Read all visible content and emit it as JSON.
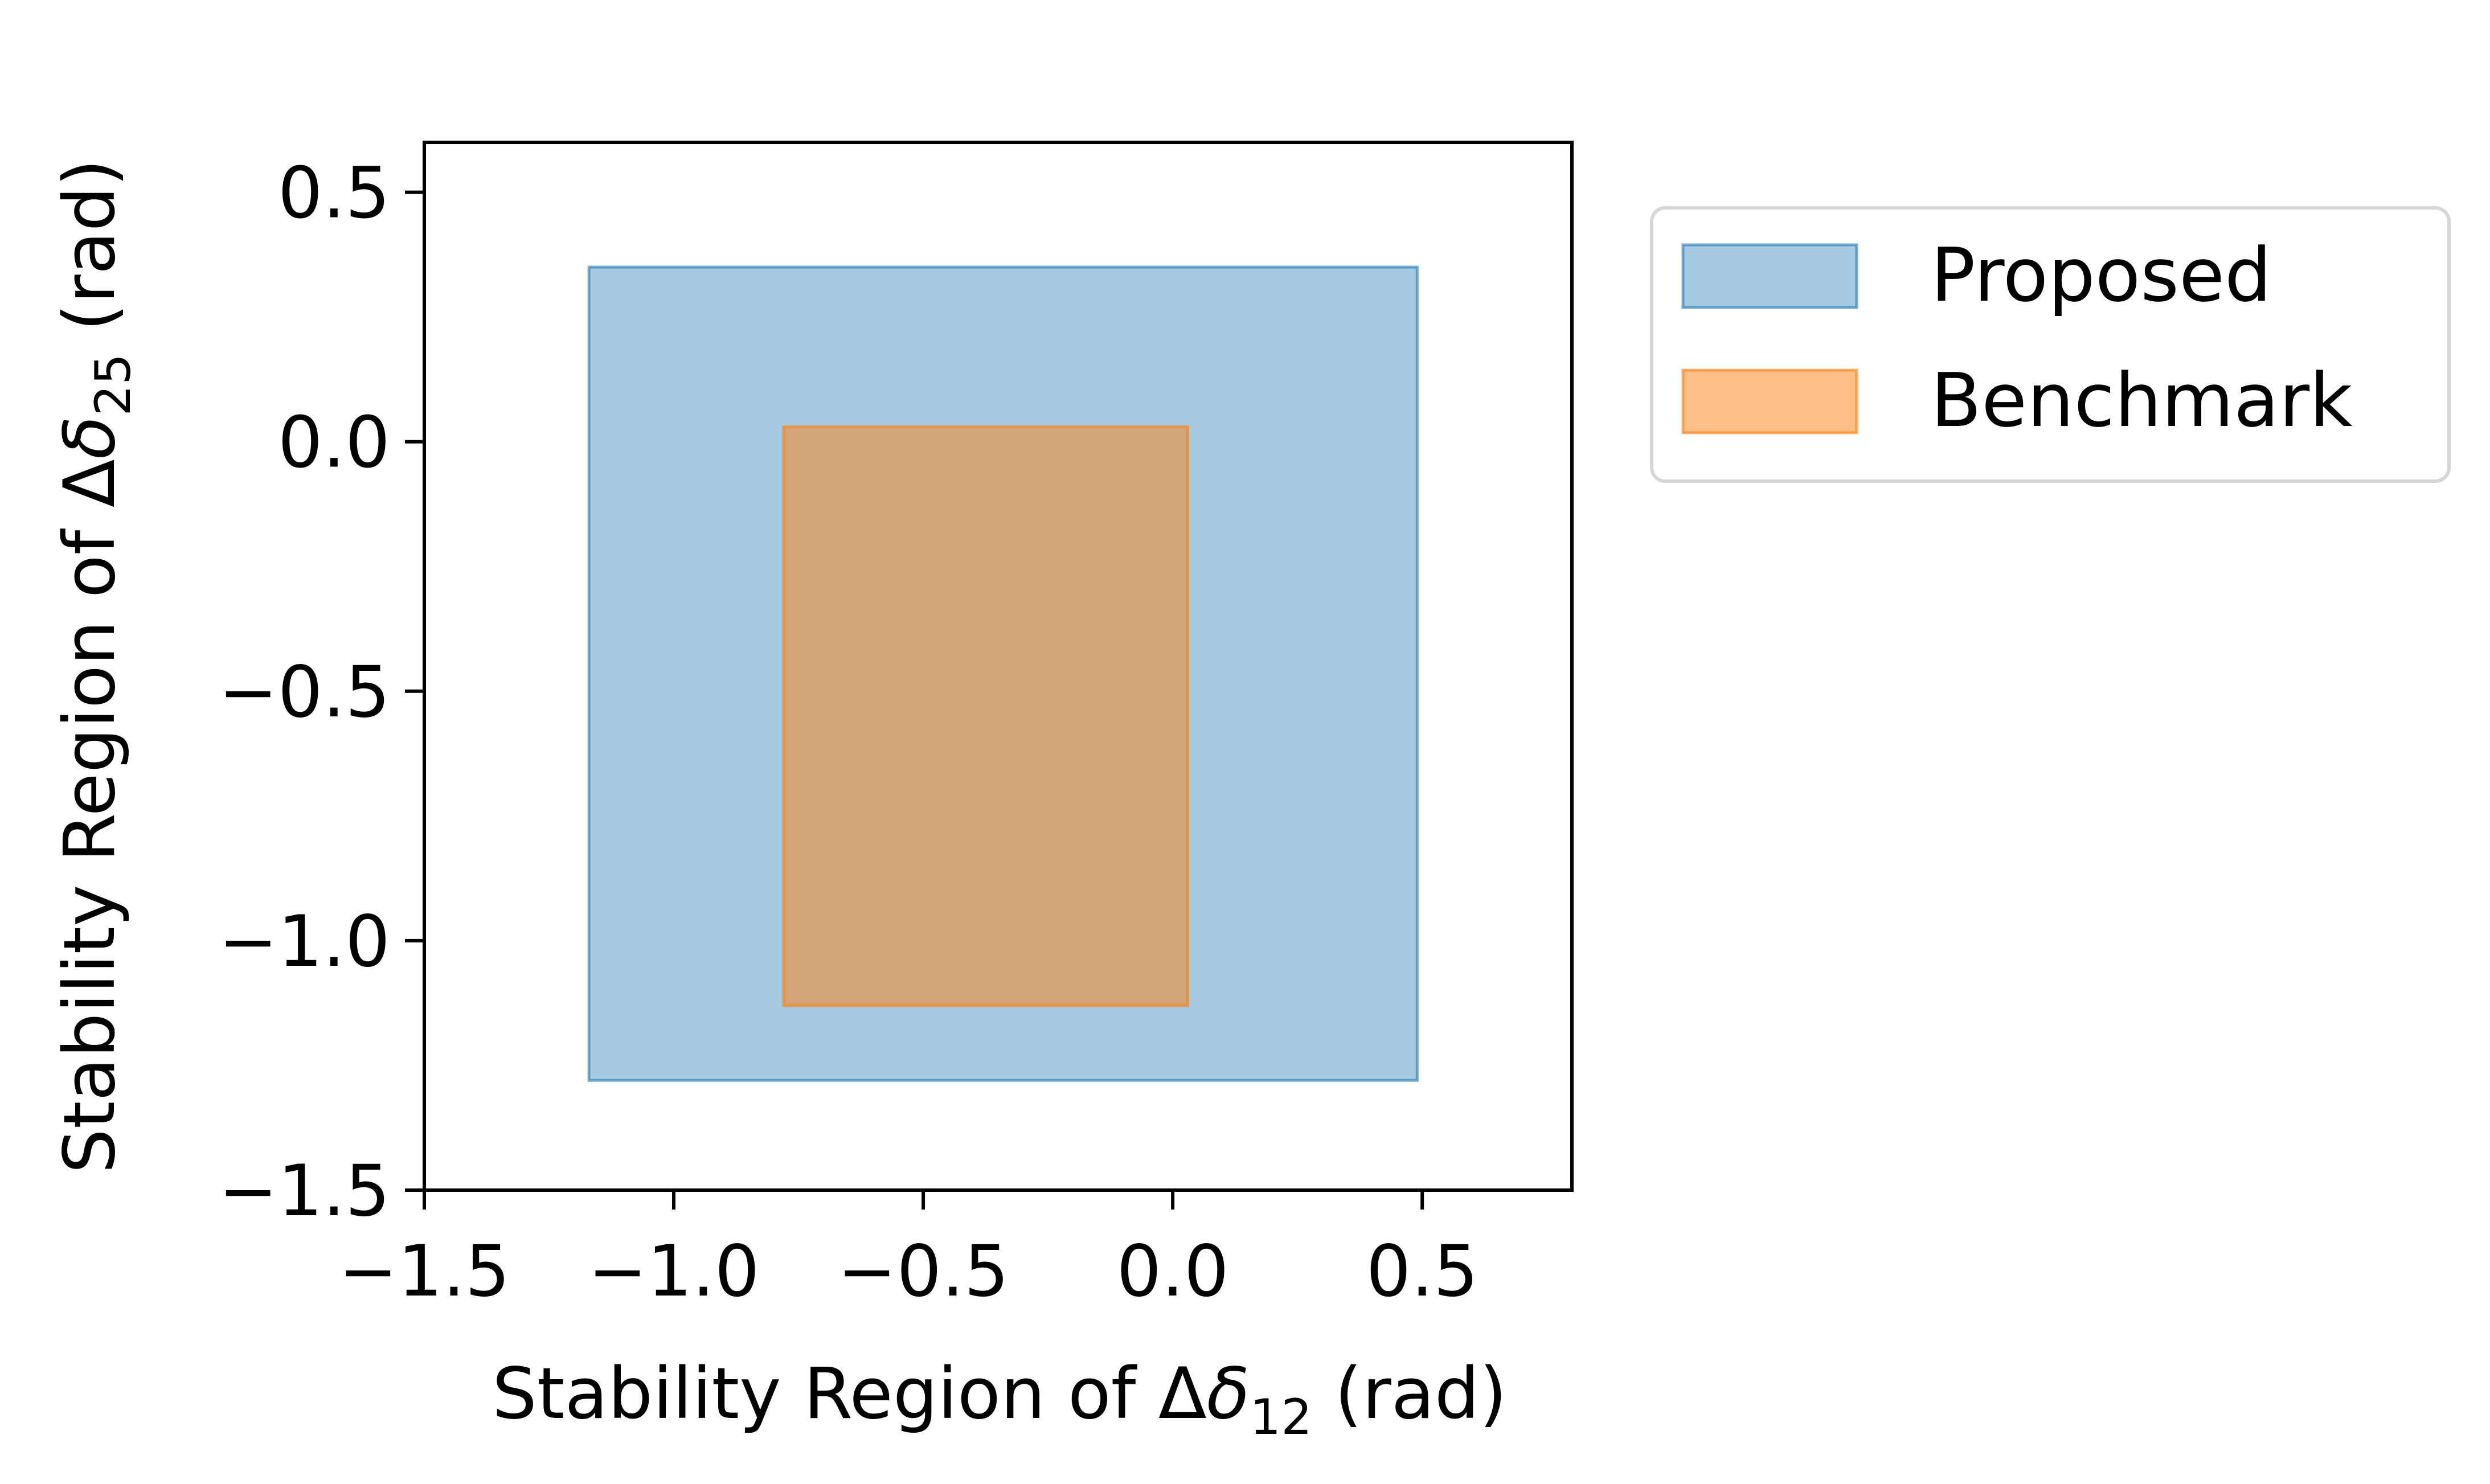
{
  "chart_data": {
    "type": "area",
    "title": "",
    "xlabel": {
      "prefix": "Stability Region of Δ",
      "symbol": "δ",
      "subscript": "12",
      "suffix": " (rad)"
    },
    "ylabel": {
      "prefix": "Stability Region of Δ",
      "symbol": "δ",
      "subscript": "25",
      "suffix": " (rad)"
    },
    "xlim": [
      -1.5,
      0.8
    ],
    "ylim": [
      -1.5,
      0.6
    ],
    "xticks": [
      -1.5,
      -1.0,
      -0.5,
      0.0,
      0.5
    ],
    "yticks": [
      -1.5,
      -1.0,
      -0.5,
      0.0,
      0.5
    ],
    "xtick_labels": [
      "−1.5",
      "−1.0",
      "−0.5",
      "0.0",
      "0.5"
    ],
    "ytick_labels": [
      "−1.5",
      "−1.0",
      "−0.5",
      "0.0",
      "0.5"
    ],
    "grid": false,
    "legend_position": "outside-top-right",
    "series": [
      {
        "name": "Proposed",
        "x_range": [
          -1.17,
          0.49
        ],
        "y_range": [
          -1.28,
          0.35
        ],
        "fill_color": "#1f77b4",
        "fill_opacity": 0.4
      },
      {
        "name": "Benchmark",
        "x_range": [
          -0.78,
          0.03
        ],
        "y_range": [
          -1.13,
          0.03
        ],
        "fill_color": "#ff7f0e",
        "fill_opacity": 0.5
      }
    ]
  }
}
